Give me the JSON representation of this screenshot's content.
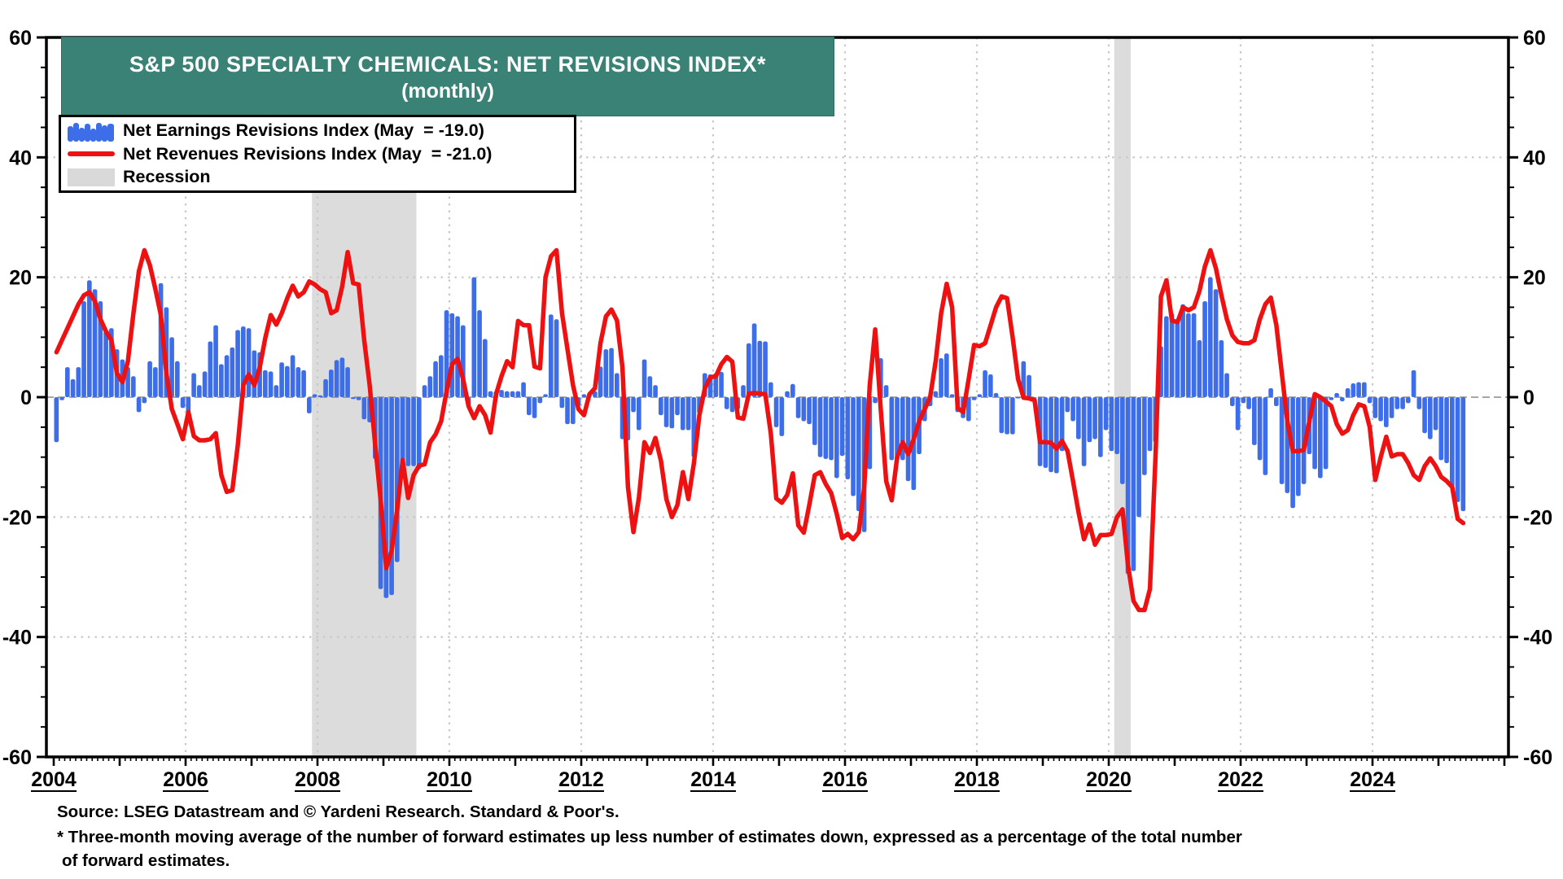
{
  "title": {
    "main": "S&P 500 SPECIALTY CHEMICALS: NET REVISIONS INDEX*",
    "sub": "(monthly)"
  },
  "legend": {
    "items": [
      {
        "label": "Net Earnings Revisions Index (May  = -19.0)",
        "swatch": "bars",
        "color": "#3D6DE8"
      },
      {
        "label": "Net Revenues Revisions Index (May  = -21.0)",
        "swatch": "line",
        "color": "#EE1111"
      },
      {
        "label": "Recession",
        "swatch": "band",
        "color": "#D9D9D9"
      }
    ]
  },
  "footer": {
    "source": "Source: LSEG Datastream and © Yardeni Research. Standard & Poor's.",
    "note1": "* Three-month moving average of the number of forward estimates up less number of estimates down, expressed as a percentage of the total number",
    "note2": "of forward estimates."
  },
  "chart_data": {
    "type": "bar+line combo, monthly time series",
    "title": "S&P 500 Specialty Chemicals: Net Revisions Index (monthly)",
    "x_start": "2004-01",
    "x_end": "2025-05",
    "ylim": [
      -60,
      60
    ],
    "y_major_tick": 20,
    "y_minor_tick": 5,
    "y_gridlines_dotted": [
      -40,
      -20,
      20,
      40
    ],
    "x_labeled_years": [
      2004,
      2006,
      2008,
      2010,
      2012,
      2014,
      2016,
      2018,
      2020,
      2022,
      2024
    ],
    "legend_position": "top-left",
    "colors": {
      "bars": "#3D6DE8",
      "line": "#EE1111",
      "recession": "#DCDCDC",
      "grid": "#C8C8C8",
      "zero_line": "#8a8a8a",
      "frame": "#000000"
    },
    "recessions": [
      {
        "start": "2007-12",
        "end": "2009-06"
      },
      {
        "start": "2020-02",
        "end": "2020-04"
      }
    ],
    "series": [
      {
        "name": "Net Earnings Revisions Index",
        "type": "bar",
        "latest": {
          "month": "May",
          "value": -19.0
        },
        "values": [
          -7.5,
          -0.5,
          5,
          3,
          5,
          16,
          19.5,
          18,
          16,
          11,
          11.5,
          8,
          6.3,
          5,
          3.5,
          -2.5,
          -1,
          6,
          5,
          19,
          15,
          10,
          6,
          -1.8,
          -2.5,
          4,
          2,
          4.3,
          9.3,
          12,
          5.5,
          7,
          8.3,
          11.2,
          11.8,
          11.5,
          7.8,
          7.5,
          4.5,
          4.3,
          2,
          5.8,
          5.2,
          7,
          5,
          4.5,
          -2.7,
          0.5,
          0.3,
          3,
          4.6,
          6.2,
          6.6,
          5,
          -0.3,
          -0.5,
          -3.7,
          -4.2,
          -10.3,
          -32,
          -33.5,
          -33,
          -27.5,
          -13.5,
          -11.5,
          -11.5,
          -12,
          2,
          3.5,
          6,
          7,
          14.5,
          14,
          13.5,
          12,
          -1.5,
          20,
          14.5,
          9.7,
          1,
          1,
          1.2,
          1,
          1,
          1,
          2.5,
          -3,
          -3.5,
          -1,
          0.5,
          13.8,
          13,
          -1.8,
          -4.5,
          -4.5,
          -1.5,
          0.5,
          0.5,
          1,
          5.1,
          8,
          8.2,
          4,
          -7,
          -7.2,
          -2.5,
          -5.5,
          6.3,
          3.5,
          2,
          -3,
          -5,
          -5.2,
          -3,
          -5.5,
          -5.5,
          -10,
          -2.7,
          4,
          3.8,
          4,
          4.2,
          -2,
          -2.5,
          -2,
          2,
          9,
          12.3,
          9.4,
          9.3,
          2.5,
          -5,
          -6.5,
          1,
          2.2,
          -3.5,
          -4,
          -4.5,
          -8,
          -10,
          -10.3,
          -10.5,
          -13.5,
          -9.8,
          -13.7,
          -16.5,
          -19,
          -22.5,
          -12,
          -1,
          6.5,
          2,
          -10.5,
          -10.5,
          -10.5,
          -14,
          -15.5,
          -9.5,
          -4,
          -1.5,
          1,
          6.5,
          7.3,
          0.5,
          -2.5,
          -3.5,
          -4,
          -0.5,
          0.5,
          4.5,
          3.8,
          0.7,
          -6,
          -6.2,
          -6.2,
          0,
          6,
          3.7,
          0,
          -11.5,
          -11.8,
          -12.5,
          -12.7,
          -9,
          -2.5,
          -4,
          -7,
          -11.5,
          -7.5,
          -7,
          -10,
          -5.5,
          -9,
          -9.5,
          -14.5,
          -29.5,
          -29,
          -20,
          -13,
          -9,
          -7.5,
          8.5,
          13.5,
          14,
          13,
          15.5,
          14,
          14,
          9.5,
          16,
          20,
          18,
          9.5,
          4,
          -1.5,
          -5.5,
          -1,
          -2,
          -8,
          -10.5,
          -13,
          1.5,
          -1.5,
          -14.5,
          -16,
          -18.5,
          -16.5,
          -14.5,
          -9.5,
          -12,
          -13.5,
          -12,
          -0.5,
          0.7,
          -0.7,
          1.5,
          2.3,
          2.5,
          2.5,
          -1,
          -3.5,
          -4,
          -5,
          -3.5,
          -2,
          -2,
          -1,
          4.5,
          -2,
          -6,
          -7,
          -5.5,
          -10.5,
          -11,
          -15,
          -17.5,
          -19
        ]
      },
      {
        "name": "Net Revenues Revisions Index",
        "type": "line",
        "latest": {
          "month": "May",
          "value": -21.0
        },
        "values": [
          7.5,
          9.5,
          11.5,
          13.5,
          15.5,
          17,
          17.5,
          16,
          13,
          11,
          9.5,
          4,
          2.5,
          6,
          14,
          21,
          24.5,
          22,
          18,
          13.7,
          4,
          -2,
          -4.5,
          -7,
          -2.5,
          -6.5,
          -7.2,
          -7.2,
          -7,
          -6,
          -13,
          -15.8,
          -15.5,
          -8,
          2,
          3.8,
          2,
          5,
          9.9,
          13.7,
          12.1,
          14,
          16.5,
          18.6,
          16.8,
          17.5,
          19.3,
          18.8,
          18,
          17.5,
          14,
          14.5,
          18.5,
          24.2,
          19,
          18.8,
          9.5,
          2,
          -8,
          -17.2,
          -28.5,
          -25.6,
          -18.8,
          -10.5,
          -16.8,
          -13,
          -11.4,
          -11.2,
          -7.5,
          -6.2,
          -4,
          1,
          5.5,
          6.4,
          3,
          -1.5,
          -3.5,
          -1.5,
          -3,
          -5.9,
          0.5,
          3.5,
          6,
          5,
          12.7,
          12,
          12,
          5.1,
          4.8,
          20,
          23.5,
          24.5,
          14,
          8,
          2,
          -2,
          -3,
          0.5,
          1.5,
          9,
          13.5,
          14.6,
          12.8,
          5,
          -15,
          -22.5,
          -16.7,
          -7.5,
          -9.3,
          -6.8,
          -10.6,
          -17,
          -20,
          -18,
          -12.5,
          -17,
          -11,
          -3,
          1.5,
          3.3,
          3.5,
          5.5,
          6.7,
          5.9,
          -3.4,
          -3.6,
          0.6,
          0.7,
          0.6,
          0.5,
          -6.1,
          -16.9,
          -17.6,
          -16.3,
          -12.7,
          -21.4,
          -22.6,
          -18,
          -13,
          -12.5,
          -14.5,
          -16,
          -19.5,
          -23.5,
          -22.8,
          -23.7,
          -22.5,
          -15,
          2,
          11.3,
          -2,
          -14,
          -17.2,
          -10,
          -7.5,
          -9.5,
          -7,
          -4,
          -2,
          0,
          6,
          14,
          18.9,
          15,
          -1.8,
          -2.5,
          3,
          8.7,
          8.5,
          9,
          12,
          15,
          16.8,
          16.5,
          10,
          3,
          -0.1,
          -0.2,
          -0.5,
          -7.5,
          -7.5,
          -7.6,
          -8.6,
          -7.3,
          -9,
          -14,
          -19.2,
          -23.7,
          -21.2,
          -24.6,
          -23,
          -23,
          -22.8,
          -20,
          -18.7,
          -28,
          -34,
          -35.5,
          -35.5,
          -32,
          -10,
          16.8,
          19.5,
          12.8,
          12.5,
          15,
          14.5,
          15,
          17.7,
          21.8,
          24.5,
          21.5,
          17,
          13,
          10.3,
          9.2,
          9,
          9,
          9.5,
          13,
          15.5,
          16.6,
          12,
          4,
          -4,
          -9,
          -9,
          -8.8,
          -4,
          0.5,
          0,
          -0.7,
          -1.5,
          -4.5,
          -6.1,
          -5.5,
          -3,
          -1.2,
          -1.5,
          -5,
          -13.8,
          -10,
          -6.6,
          -9.9,
          -9.5,
          -9.5,
          -11,
          -13,
          -13.8,
          -11.5,
          -10.2,
          -11.5,
          -13.3,
          -14,
          -15,
          -20.3,
          -21
        ]
      }
    ]
  }
}
